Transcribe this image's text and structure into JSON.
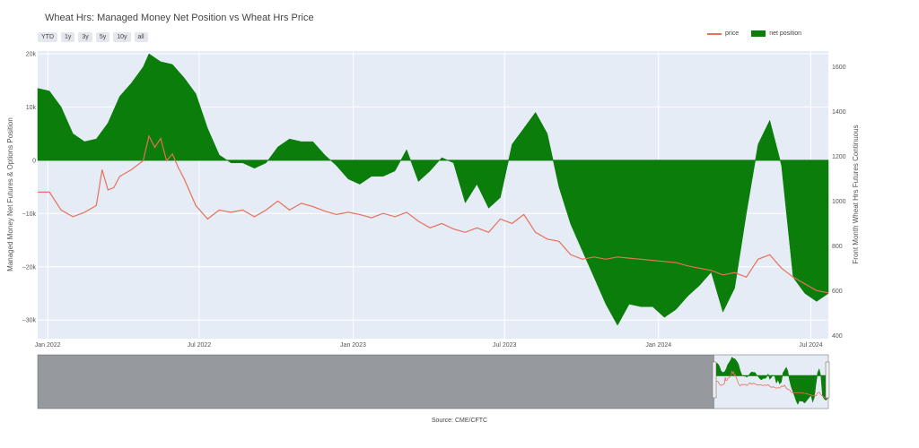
{
  "chart_data": {
    "type": "line",
    "title": "Wheat Hrs: Managed Money Net Position vs Wheat Hrs Price",
    "ylabel": "Managed Money Net Futures & Options Position",
    "y2label": "Front Month Wheat Hrs Futures Continuous",
    "source": "Source: CME/CFTC",
    "range_buttons": [
      "YTD",
      "1y",
      "3y",
      "5y",
      "10y",
      "all"
    ],
    "x_ticks": [
      "Jan 2022",
      "Jul 2022",
      "Jan 2023",
      "Jul 2023",
      "Jan 2024",
      "Jul 2024"
    ],
    "y_ticks": [
      "20k",
      "10k",
      "0",
      "−10k",
      "−20k",
      "−30k"
    ],
    "y2_ticks": [
      "1600",
      "1400",
      "1200",
      "1000",
      "800",
      "600",
      "400"
    ],
    "ylim": [
      -33500,
      20500
    ],
    "y2lim": [
      385,
      1670
    ],
    "colors": {
      "net_position": "#0a7d0a",
      "price": "#e8705a",
      "plot_bg": "#e5ecf6"
    },
    "legend_position": "top-right",
    "series": [
      {
        "name": "net position",
        "axis": "left",
        "style": "area",
        "points": [
          [
            "2021-12-20",
            13500
          ],
          [
            "2022-01-03",
            13000
          ],
          [
            "2022-01-17",
            10000
          ],
          [
            "2022-01-31",
            5000
          ],
          [
            "2022-02-14",
            3500
          ],
          [
            "2022-02-28",
            4000
          ],
          [
            "2022-03-14",
            7000
          ],
          [
            "2022-03-28",
            12000
          ],
          [
            "2022-04-11",
            14500
          ],
          [
            "2022-04-25",
            17500
          ],
          [
            "2022-05-02",
            20000
          ],
          [
            "2022-05-16",
            18500
          ],
          [
            "2022-05-30",
            18000
          ],
          [
            "2022-06-13",
            15500
          ],
          [
            "2022-06-27",
            12500
          ],
          [
            "2022-07-11",
            6000
          ],
          [
            "2022-07-25",
            1000
          ],
          [
            "2022-08-08",
            -500
          ],
          [
            "2022-08-22",
            -500
          ],
          [
            "2022-09-05",
            -1500
          ],
          [
            "2022-09-19",
            -500
          ],
          [
            "2022-10-03",
            2500
          ],
          [
            "2022-10-17",
            4000
          ],
          [
            "2022-10-31",
            3500
          ],
          [
            "2022-11-14",
            3500
          ],
          [
            "2022-11-28",
            1000
          ],
          [
            "2022-12-12",
            -1000
          ],
          [
            "2022-12-26",
            -3500
          ],
          [
            "2023-01-09",
            -4500
          ],
          [
            "2023-01-23",
            -3000
          ],
          [
            "2023-02-06",
            -3000
          ],
          [
            "2023-02-20",
            -2000
          ],
          [
            "2023-03-06",
            2000
          ],
          [
            "2023-03-20",
            -4000
          ],
          [
            "2023-04-03",
            -2000
          ],
          [
            "2023-04-17",
            500
          ],
          [
            "2023-05-01",
            -500
          ],
          [
            "2023-05-15",
            -8000
          ],
          [
            "2023-05-29",
            -4500
          ],
          [
            "2023-06-12",
            -9000
          ],
          [
            "2023-06-26",
            -7000
          ],
          [
            "2023-07-10",
            3000
          ],
          [
            "2023-07-24",
            6000
          ],
          [
            "2023-08-07",
            9000
          ],
          [
            "2023-08-21",
            5000
          ],
          [
            "2023-09-04",
            -5000
          ],
          [
            "2023-09-18",
            -12000
          ],
          [
            "2023-10-02",
            -17000
          ],
          [
            "2023-10-16",
            -22000
          ],
          [
            "2023-10-30",
            -27000
          ],
          [
            "2023-11-13",
            -31000
          ],
          [
            "2023-11-27",
            -27000
          ],
          [
            "2023-12-11",
            -27500
          ],
          [
            "2023-12-25",
            -27500
          ],
          [
            "2024-01-08",
            -29500
          ],
          [
            "2024-01-22",
            -28000
          ],
          [
            "2024-02-05",
            -25500
          ],
          [
            "2024-02-19",
            -23500
          ],
          [
            "2024-03-04",
            -21000
          ],
          [
            "2024-03-18",
            -28500
          ],
          [
            "2024-04-01",
            -24000
          ],
          [
            "2024-04-15",
            -10000
          ],
          [
            "2024-04-29",
            3000
          ],
          [
            "2024-05-13",
            7500
          ],
          [
            "2024-05-27",
            -1000
          ],
          [
            "2024-06-10",
            -22000
          ],
          [
            "2024-06-24",
            -25000
          ],
          [
            "2024-07-08",
            -26500
          ],
          [
            "2024-07-22",
            -25000
          ]
        ]
      },
      {
        "name": "price",
        "axis": "right",
        "style": "line",
        "points": [
          [
            "2021-12-20",
            1040
          ],
          [
            "2022-01-03",
            1040
          ],
          [
            "2022-01-17",
            960
          ],
          [
            "2022-01-31",
            930
          ],
          [
            "2022-02-14",
            950
          ],
          [
            "2022-02-28",
            980
          ],
          [
            "2022-03-07",
            1140
          ],
          [
            "2022-03-14",
            1050
          ],
          [
            "2022-03-21",
            1060
          ],
          [
            "2022-03-28",
            1110
          ],
          [
            "2022-04-11",
            1140
          ],
          [
            "2022-04-25",
            1180
          ],
          [
            "2022-05-02",
            1290
          ],
          [
            "2022-05-09",
            1240
          ],
          [
            "2022-05-16",
            1280
          ],
          [
            "2022-05-23",
            1180
          ],
          [
            "2022-05-30",
            1210
          ],
          [
            "2022-06-06",
            1150
          ],
          [
            "2022-06-13",
            1100
          ],
          [
            "2022-06-27",
            980
          ],
          [
            "2022-07-11",
            920
          ],
          [
            "2022-07-25",
            960
          ],
          [
            "2022-08-08",
            950
          ],
          [
            "2022-08-22",
            960
          ],
          [
            "2022-09-05",
            930
          ],
          [
            "2022-09-19",
            960
          ],
          [
            "2022-10-03",
            1000
          ],
          [
            "2022-10-17",
            960
          ],
          [
            "2022-10-31",
            990
          ],
          [
            "2022-11-14",
            975
          ],
          [
            "2022-11-28",
            955
          ],
          [
            "2022-12-12",
            940
          ],
          [
            "2022-12-26",
            950
          ],
          [
            "2023-01-09",
            940
          ],
          [
            "2023-01-23",
            925
          ],
          [
            "2023-02-06",
            945
          ],
          [
            "2023-02-20",
            930
          ],
          [
            "2023-03-06",
            950
          ],
          [
            "2023-03-20",
            910
          ],
          [
            "2023-04-03",
            880
          ],
          [
            "2023-04-17",
            900
          ],
          [
            "2023-05-01",
            875
          ],
          [
            "2023-05-15",
            860
          ],
          [
            "2023-05-29",
            880
          ],
          [
            "2023-06-12",
            860
          ],
          [
            "2023-06-26",
            920
          ],
          [
            "2023-07-10",
            900
          ],
          [
            "2023-07-24",
            940
          ],
          [
            "2023-08-07",
            860
          ],
          [
            "2023-08-21",
            830
          ],
          [
            "2023-09-04",
            820
          ],
          [
            "2023-09-18",
            760
          ],
          [
            "2023-10-02",
            740
          ],
          [
            "2023-10-16",
            750
          ],
          [
            "2023-10-30",
            740
          ],
          [
            "2023-11-13",
            750
          ],
          [
            "2023-11-27",
            745
          ],
          [
            "2023-12-11",
            740
          ],
          [
            "2023-12-25",
            735
          ],
          [
            "2024-01-08",
            730
          ],
          [
            "2024-01-22",
            725
          ],
          [
            "2024-02-05",
            710
          ],
          [
            "2024-02-19",
            700
          ],
          [
            "2024-03-04",
            690
          ],
          [
            "2024-03-18",
            670
          ],
          [
            "2024-04-01",
            680
          ],
          [
            "2024-04-15",
            660
          ],
          [
            "2024-04-29",
            740
          ],
          [
            "2024-05-13",
            760
          ],
          [
            "2024-05-27",
            700
          ],
          [
            "2024-06-10",
            660
          ],
          [
            "2024-06-24",
            630
          ],
          [
            "2024-07-08",
            600
          ],
          [
            "2024-07-22",
            590
          ]
        ]
      }
    ]
  },
  "x_tick_dates": [
    "2022-01-01",
    "2022-07-01",
    "2023-01-01",
    "2023-07-01",
    "2024-01-01",
    "2024-07-01"
  ],
  "y_tick_values": [
    20000,
    10000,
    0,
    -10000,
    -20000,
    -30000
  ],
  "y2_tick_values": [
    1600,
    1400,
    1200,
    1000,
    800,
    600,
    400
  ]
}
